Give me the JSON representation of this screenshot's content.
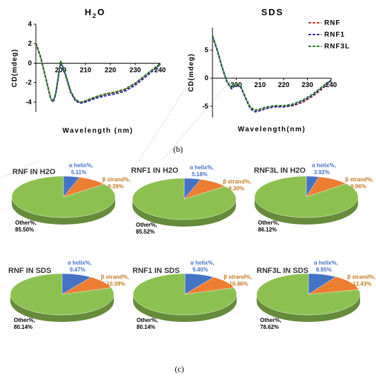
{
  "captions": {
    "b": "(b)",
    "c": "(c)"
  },
  "colors": {
    "RNF": "#c0392b",
    "RNF1": "#2c2cb0",
    "RNF3L": "#1f7a1f",
    "helix": "#4472c4",
    "strand": "#ed7d31",
    "other": "#8cc152",
    "helix_text": "#4472c4",
    "strand_text": "#c47a1f",
    "other_text": "#000000"
  },
  "chart_data": [
    {
      "type": "line",
      "title": "H2O",
      "xlabel": "Wavelength (nm)",
      "ylabel": "CD(mdeg)",
      "xlim": [
        190,
        240
      ],
      "ylim": [
        -5,
        4
      ],
      "x_ticks": [
        "200",
        "210",
        "220",
        "230",
        "240"
      ],
      "y_ticks": [
        "4",
        "2",
        "0",
        "-2",
        "-4"
      ],
      "series": [
        {
          "name": "RNF",
          "x": [
            190,
            192,
            194,
            196,
            197,
            198,
            200,
            202,
            204,
            206,
            208,
            210,
            214,
            218,
            222,
            226,
            230,
            234,
            238,
            240
          ],
          "y": [
            2.1,
            0.6,
            -1.5,
            -3.6,
            -3.95,
            -3.1,
            0.2,
            -1.2,
            -2.9,
            -3.8,
            -4.05,
            -3.9,
            -3.5,
            -3.2,
            -3.0,
            -2.7,
            -2.1,
            -1.3,
            -0.5,
            -0.1
          ]
        },
        {
          "name": "RNF1",
          "x": [
            190,
            192,
            194,
            196,
            197,
            198,
            200,
            202,
            204,
            206,
            208,
            210,
            214,
            218,
            222,
            226,
            230,
            234,
            238,
            240
          ],
          "y": [
            2.0,
            0.5,
            -1.6,
            -3.7,
            -4.0,
            -3.2,
            0.1,
            -1.3,
            -3.0,
            -3.9,
            -4.1,
            -4.0,
            -3.6,
            -3.35,
            -3.15,
            -2.85,
            -2.25,
            -1.45,
            -0.6,
            -0.15
          ]
        },
        {
          "name": "RNF3L",
          "x": [
            190,
            192,
            194,
            196,
            197,
            198,
            200,
            202,
            204,
            206,
            208,
            210,
            214,
            218,
            222,
            226,
            230,
            234,
            238,
            240
          ],
          "y": [
            2.05,
            0.55,
            -1.55,
            -3.65,
            -3.9,
            -3.05,
            0.25,
            -1.15,
            -2.85,
            -3.75,
            -4.0,
            -3.85,
            -3.45,
            -3.15,
            -2.95,
            -2.65,
            -2.05,
            -1.25,
            -0.45,
            -0.05
          ]
        }
      ]
    },
    {
      "type": "line",
      "title": "SDS",
      "xlabel": "Wavelength(nm)",
      "ylabel": "CD(mdeg)",
      "xlim": [
        190,
        240
      ],
      "ylim": [
        -7,
        9
      ],
      "x_ticks": [
        "200",
        "210",
        "220",
        "230",
        "240"
      ],
      "y_ticks": [
        "5",
        "0",
        "-5"
      ],
      "legend": [
        "RNF",
        "RNF1",
        "RNF3L"
      ],
      "legend_position": "top-right",
      "series": [
        {
          "name": "RNF",
          "x": [
            190,
            192,
            194,
            196,
            198,
            200,
            202,
            204,
            206,
            208,
            210,
            212,
            216,
            220,
            224,
            228,
            232,
            236,
            240
          ],
          "y": [
            7.5,
            5.0,
            2.0,
            -0.5,
            -1.8,
            -1.1,
            -1.6,
            -3.6,
            -5.3,
            -5.8,
            -5.6,
            -5.3,
            -5.0,
            -5.1,
            -4.9,
            -4.3,
            -3.3,
            -2.0,
            -0.5
          ]
        },
        {
          "name": "RNF1",
          "x": [
            190,
            192,
            194,
            196,
            198,
            200,
            202,
            204,
            206,
            208,
            210,
            212,
            216,
            220,
            224,
            228,
            232,
            236,
            240
          ],
          "y": [
            7.4,
            4.9,
            1.9,
            -0.6,
            -1.9,
            -1.2,
            -1.7,
            -3.7,
            -5.5,
            -6.0,
            -5.8,
            -5.5,
            -5.1,
            -5.1,
            -4.8,
            -4.1,
            -3.1,
            -1.8,
            -0.4
          ]
        },
        {
          "name": "RNF3L",
          "x": [
            190,
            192,
            194,
            196,
            198,
            200,
            202,
            204,
            206,
            208,
            210,
            212,
            216,
            220,
            224,
            228,
            232,
            236,
            240
          ],
          "y": [
            7.6,
            5.1,
            2.1,
            -0.4,
            -1.7,
            -1.0,
            -1.5,
            -3.5,
            -5.2,
            -5.7,
            -5.5,
            -5.2,
            -4.9,
            -4.9,
            -4.6,
            -3.9,
            -2.9,
            -1.6,
            -0.3
          ]
        }
      ]
    },
    {
      "type": "pie",
      "title": "RNF IN H2O",
      "slices": [
        {
          "label": "α helix%,",
          "value": 5.11,
          "value_text": "5.11%"
        },
        {
          "label": "β strand%,",
          "value": 9.39,
          "value_text": "9.39%"
        },
        {
          "label": "Other%,",
          "value": 85.5,
          "value_text": "85.50%"
        }
      ]
    },
    {
      "type": "pie",
      "title": "RNF1 IN H2O",
      "slices": [
        {
          "label": "α helix%,",
          "value": 5.18,
          "value_text": "5.18%"
        },
        {
          "label": "β strand%,",
          "value": 9.3,
          "value_text": "9.30%"
        },
        {
          "label": "Other%,",
          "value": 85.52,
          "value_text": "85.52%"
        }
      ]
    },
    {
      "type": "pie",
      "title": "RNF3L IN H2O",
      "slices": [
        {
          "label": "α helix%,",
          "value": 3.92,
          "value_text": "3.92%"
        },
        {
          "label": "β strand%,",
          "value": 9.96,
          "value_text": "9.96%"
        },
        {
          "label": "Other%,",
          "value": 86.12,
          "value_text": "86.12%"
        }
      ]
    },
    {
      "type": "pie",
      "title": "RNF IN SDS",
      "slices": [
        {
          "label": "α helix%,",
          "value": 9.47,
          "value_text": "9.47%"
        },
        {
          "label": "β strand%,",
          "value": 10.39,
          "value_text": "10.39%"
        },
        {
          "label": "Other%,",
          "value": 80.14,
          "value_text": "80.14%"
        }
      ]
    },
    {
      "type": "pie",
      "title": "RNF1 IN SDS",
      "slices": [
        {
          "label": "α helix%,",
          "value": 9.4,
          "value_text": "9.40%"
        },
        {
          "label": "β strand%,",
          "value": 10.46,
          "value_text": "10.46%"
        },
        {
          "label": "Other%,",
          "value": 80.14,
          "value_text": "80.14%"
        }
      ]
    },
    {
      "type": "pie",
      "title": "RNF3L IN SDS",
      "slices": [
        {
          "label": "α helix%,",
          "value": 8.95,
          "value_text": "8.95%"
        },
        {
          "label": "β strand%,",
          "value": 12.43,
          "value_text": "12.43%"
        },
        {
          "label": "Other%,",
          "value": 78.62,
          "value_text": "78.62%"
        }
      ]
    }
  ]
}
